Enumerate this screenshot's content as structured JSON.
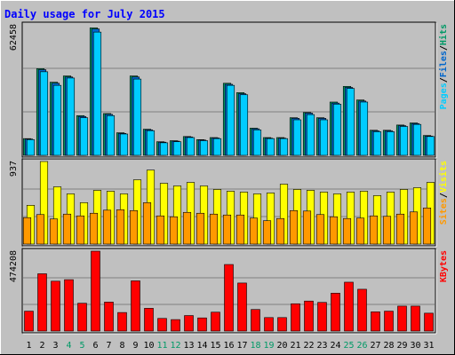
{
  "chart_data": {
    "type": "bar",
    "title": "Daily usage for July 2015",
    "categories": [
      "1",
      "2",
      "3",
      "4",
      "5",
      "6",
      "7",
      "8",
      "9",
      "10",
      "11",
      "12",
      "13",
      "14",
      "15",
      "16",
      "17",
      "18",
      "19",
      "20",
      "21",
      "22",
      "23",
      "24",
      "25",
      "26",
      "27",
      "28",
      "29",
      "30",
      "31"
    ],
    "weekend_days": [
      "4",
      "5",
      "11",
      "12",
      "18",
      "19",
      "25",
      "26"
    ],
    "panels": [
      {
        "id": "hits",
        "max_label": "62458",
        "ylim": [
          0,
          62458
        ],
        "legend": [
          "Pages",
          "Files",
          "Hits"
        ],
        "series": [
          {
            "name": "Hits",
            "color": "#009966",
            "values": [
              8000,
              41500,
              35000,
              38000,
              19000,
              61000,
              20000,
              10800,
              38000,
              12500,
              6500,
              7000,
              9000,
              7500,
              8500,
              34500,
              30000,
              13000,
              8500,
              8500,
              18000,
              20500,
              18000,
              25500,
              33000,
              26500,
              12000,
              12000,
              14500,
              15500,
              9500
            ]
          },
          {
            "name": "Files",
            "color": "#0066cc",
            "values": [
              7800,
              41000,
              34500,
              37500,
              18600,
              60500,
              19600,
              10500,
              37500,
              12200,
              6300,
              6800,
              8800,
              7300,
              8300,
              34000,
              29500,
              12700,
              8200,
              8200,
              17700,
              20200,
              17700,
              25000,
              32500,
              26000,
              11700,
              11700,
              14200,
              15200,
              9200
            ]
          },
          {
            "name": "Pages",
            "color": "#00ccff",
            "values": [
              7500,
              40000,
              33500,
              37000,
              18000,
              59000,
              19000,
              10200,
              36500,
              11800,
              6000,
              6500,
              8500,
              7000,
              8000,
              33500,
              29000,
              12200,
              8000,
              8000,
              17000,
              19500,
              17000,
              24500,
              32000,
              25500,
              11300,
              11300,
              13800,
              14800,
              9000
            ]
          }
        ]
      },
      {
        "id": "visits",
        "max_label": "937",
        "ylim": [
          0,
          937
        ],
        "legend": [
          "Sites",
          "Visits"
        ],
        "series": [
          {
            "name": "Visits",
            "color": "#ffff00",
            "values": [
              440,
              937,
              650,
              570,
              470,
              610,
              600,
              570,
              730,
              840,
              690,
              660,
              700,
              660,
              620,
              600,
              590,
              570,
              580,
              680,
              620,
              610,
              590,
              570,
              590,
              600,
              550,
              590,
              620,
              640,
              700
            ]
          },
          {
            "name": "Sites",
            "color": "#ff9900",
            "values": [
              300,
              335,
              285,
              340,
              320,
              350,
              385,
              390,
              380,
              470,
              320,
              310,
              360,
              350,
              340,
              330,
              330,
              295,
              265,
              290,
              380,
              375,
              335,
              310,
              290,
              295,
              320,
              315,
              340,
              365,
              410
            ]
          }
        ]
      },
      {
        "id": "kbytes",
        "max_label": "474208",
        "ylim": [
          0,
          474208
        ],
        "legend": [
          "KBytes"
        ],
        "series": [
          {
            "name": "KBytes",
            "color": "#ff0000",
            "values": [
              118000,
              340000,
              296000,
              305000,
              165000,
              474208,
              172000,
              110000,
              298000,
              135000,
              75000,
              68000,
              92000,
              78000,
              112000,
              395000,
              285000,
              128000,
              80000,
              80000,
              162000,
              178000,
              170000,
              225000,
              290000,
              248000,
              114000,
              118000,
              148000,
              148000,
              106000
            ]
          }
        ]
      }
    ],
    "colors": {
      "background": "#c0c0c0",
      "plot": "#c0c0c0",
      "title": "#0000ff",
      "day_label": "#000000",
      "weekend_label": "#009966",
      "grid": "#808080",
      "legend_separator": "#000000"
    }
  }
}
